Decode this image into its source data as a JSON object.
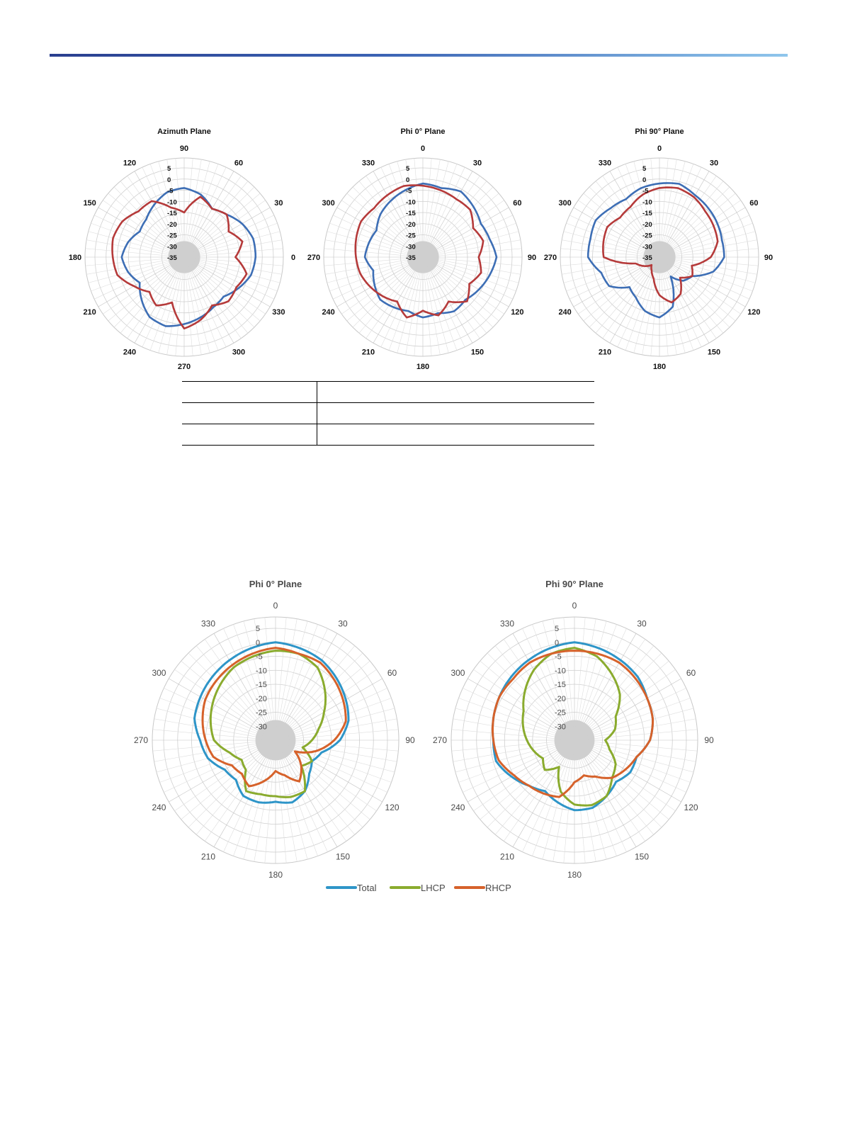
{
  "table": {
    "rows": [
      {
        "c1": "",
        "c2": ""
      },
      {
        "c1": "",
        "c2": ""
      },
      {
        "c1": "",
        "c2": ""
      }
    ]
  },
  "chart_data": [
    {
      "type": "polar-line",
      "title": "Azimuth Plane",
      "angle_zero": "right",
      "angle_direction": "counterclockwise",
      "angle_ticks": [
        0,
        30,
        60,
        90,
        120,
        150,
        180,
        210,
        240,
        270,
        300,
        330
      ],
      "radial_ticks": [
        5,
        0,
        -5,
        -10,
        -15,
        -20,
        -25,
        -30,
        -35
      ],
      "rlim": [
        -35,
        5
      ],
      "grid": true,
      "series": [
        {
          "color": "#3d6eb5",
          "angles": [
            0,
            15,
            30,
            45,
            60,
            75,
            90,
            105,
            120,
            135,
            150,
            165,
            180,
            195,
            210,
            225,
            240,
            255,
            270,
            285,
            300,
            315,
            330,
            345
          ],
          "values": [
            -3,
            -3,
            -5,
            -8,
            -10,
            -6,
            -4,
            -5,
            -8,
            -11,
            -12,
            -9,
            -7,
            -9,
            -12,
            -8,
            -4,
            -3,
            -5,
            -7,
            -9,
            -10,
            -7,
            -4
          ]
        },
        {
          "color": "#b53a3a",
          "angles": [
            0,
            15,
            30,
            45,
            60,
            75,
            90,
            105,
            120,
            135,
            150,
            165,
            180,
            195,
            210,
            225,
            240,
            255,
            270,
            285,
            300,
            315,
            330,
            345
          ],
          "values": [
            -12,
            -8,
            -12,
            -8,
            -10,
            -7,
            -15,
            -12,
            -6,
            -6,
            -3,
            -2,
            -3,
            -4,
            -9,
            -13,
            -10,
            -14,
            -3,
            -6,
            -10,
            -7,
            -8,
            -6
          ]
        }
      ]
    },
    {
      "type": "polar-line",
      "title": "Phi 0° Plane",
      "angle_zero": "top",
      "angle_direction": "clockwise",
      "angle_ticks": [
        0,
        30,
        60,
        90,
        120,
        150,
        180,
        210,
        240,
        270,
        300,
        330
      ],
      "radial_ticks": [
        5,
        0,
        -5,
        -10,
        -15,
        -20,
        -25,
        -30,
        -35
      ],
      "rlim": [
        -35,
        5
      ],
      "grid": true,
      "series": [
        {
          "color": "#3d6eb5",
          "angles": [
            0,
            15,
            30,
            45,
            60,
            75,
            90,
            105,
            120,
            135,
            150,
            165,
            180,
            195,
            210,
            225,
            240,
            255,
            270,
            285,
            300,
            315,
            330,
            345
          ],
          "values": [
            -2,
            -3,
            -1,
            -3,
            -5,
            -4,
            -2,
            -4,
            -6,
            -8,
            -7,
            -9,
            -8,
            -10,
            -9,
            -8,
            -10,
            -12,
            -9,
            -10,
            -11,
            -8,
            -6,
            -4
          ]
        },
        {
          "color": "#b53a3a",
          "angles": [
            0,
            15,
            30,
            45,
            60,
            75,
            90,
            105,
            120,
            135,
            150,
            165,
            180,
            195,
            210,
            225,
            240,
            255,
            270,
            285,
            300,
            315,
            330,
            345
          ],
          "values": [
            -3,
            -4,
            -5,
            -5,
            -9,
            -7,
            -10,
            -8,
            -11,
            -7,
            -12,
            -8,
            -11,
            -7,
            -12,
            -10,
            -8,
            -6,
            -5,
            -4,
            -3,
            -4,
            -3,
            -2
          ]
        }
      ]
    },
    {
      "type": "polar-line",
      "title": "Phi 90° Plane",
      "angle_zero": "top",
      "angle_direction": "clockwise",
      "angle_ticks": [
        0,
        30,
        60,
        90,
        120,
        150,
        180,
        210,
        240,
        270,
        300,
        330
      ],
      "radial_ticks": [
        5,
        0,
        -5,
        -10,
        -15,
        -20,
        -25,
        -30,
        -35
      ],
      "rlim": [
        -35,
        5
      ],
      "grid": true,
      "series": [
        {
          "color": "#3d6eb5",
          "angles": [
            0,
            15,
            30,
            45,
            60,
            75,
            90,
            105,
            120,
            135,
            150,
            165,
            180,
            195,
            210,
            225,
            240,
            255,
            270,
            285,
            300,
            315,
            330,
            345
          ],
          "values": [
            -2,
            -1,
            -3,
            -4,
            -5,
            -6,
            -6,
            -10,
            -18,
            -20,
            -25,
            -12,
            -8,
            -10,
            -14,
            -16,
            -9,
            -8,
            -3,
            -3,
            -2,
            -4,
            -5,
            -3
          ]
        },
        {
          "color": "#b53a3a",
          "angles": [
            0,
            15,
            30,
            45,
            60,
            75,
            90,
            105,
            120,
            135,
            150,
            165,
            180,
            195,
            210,
            225,
            240,
            255,
            270,
            285,
            300,
            315,
            330,
            345
          ],
          "values": [
            -4,
            -3,
            -4,
            -6,
            -7,
            -8,
            -12,
            -20,
            -18,
            -22,
            -16,
            -14,
            -18,
            -25,
            -28,
            -30,
            -27,
            -24,
            -10,
            -9,
            -8,
            -10,
            -9,
            -6
          ]
        }
      ]
    },
    {
      "type": "polar-line",
      "title": "Phi 0° Plane",
      "angle_zero": "top",
      "angle_direction": "clockwise",
      "angle_ticks": [
        0,
        30,
        60,
        90,
        120,
        150,
        180,
        210,
        240,
        270,
        300,
        330
      ],
      "radial_ticks": [
        5,
        0,
        -5,
        -10,
        -15,
        -20,
        -25,
        -30
      ],
      "rlim": [
        -35,
        5
      ],
      "grid": true,
      "legend": "bottom",
      "series": [
        {
          "name": "Total",
          "color": "#2e95c8",
          "angles": [
            0,
            15,
            30,
            45,
            60,
            75,
            90,
            105,
            120,
            135,
            150,
            165,
            180,
            195,
            210,
            225,
            240,
            255,
            270,
            285,
            300,
            315,
            330,
            345
          ],
          "values": [
            0,
            -1,
            -2,
            -4,
            -6,
            -8,
            -12,
            -18,
            -20,
            -18,
            -14,
            -12,
            -13,
            -12,
            -12,
            -15,
            -14,
            -10,
            -8,
            -5,
            -4,
            -3,
            -2,
            -1
          ]
        },
        {
          "name": "LHCP",
          "color": "#8aab2e",
          "angles": [
            0,
            15,
            30,
            45,
            60,
            75,
            90,
            105,
            120,
            135,
            150,
            165,
            180,
            195,
            210,
            225,
            240,
            255,
            270,
            285,
            300,
            315,
            330,
            345
          ],
          "values": [
            -3,
            -3,
            -5,
            -10,
            -15,
            -19,
            -22,
            -25,
            -20,
            -22,
            -14,
            -14,
            -15,
            -15,
            -14,
            -20,
            -21,
            -18,
            -13,
            -11,
            -9,
            -7,
            -5,
            -4
          ]
        },
        {
          "name": "RHCP",
          "color": "#d6622b",
          "angles": [
            0,
            15,
            30,
            45,
            60,
            75,
            90,
            105,
            120,
            135,
            150,
            165,
            180,
            195,
            210,
            225,
            240,
            255,
            270,
            285,
            300,
            315,
            330,
            345
          ],
          "values": [
            -2,
            -3,
            -3,
            -5,
            -7,
            -9,
            -14,
            -20,
            -27,
            -22,
            -18,
            -22,
            -24,
            -20,
            -16,
            -18,
            -17,
            -12,
            -10,
            -8,
            -6,
            -5,
            -4,
            -3
          ]
        }
      ]
    },
    {
      "type": "polar-line",
      "title": "Phi 90° Plane",
      "angle_zero": "top",
      "angle_direction": "clockwise",
      "angle_ticks": [
        0,
        30,
        60,
        90,
        120,
        150,
        180,
        210,
        240,
        270,
        300,
        330
      ],
      "radial_ticks": [
        5,
        0,
        -5,
        -10,
        -15,
        -20,
        -25,
        -30
      ],
      "rlim": [
        -35,
        5
      ],
      "grid": true,
      "legend": "bottom",
      "series": [
        {
          "name": "Total",
          "color": "#2e95c8",
          "angles": [
            0,
            15,
            30,
            45,
            60,
            75,
            90,
            105,
            120,
            135,
            150,
            165,
            180,
            195,
            210,
            225,
            240,
            255,
            270,
            285,
            300,
            315,
            330,
            345
          ],
          "values": [
            0,
            -1,
            -2,
            -3,
            -5,
            -6,
            -8,
            -12,
            -12,
            -14,
            -12,
            -10,
            -10,
            -12,
            -14,
            -12,
            -9,
            -6,
            -6,
            -5,
            -4,
            -3,
            -2,
            -1
          ]
        },
        {
          "name": "LHCP",
          "color": "#8aab2e",
          "angles": [
            0,
            15,
            30,
            45,
            60,
            75,
            90,
            105,
            120,
            135,
            150,
            165,
            180,
            195,
            210,
            225,
            240,
            255,
            270,
            285,
            300,
            315,
            330,
            345
          ],
          "values": [
            -2,
            -4,
            -8,
            -12,
            -18,
            -20,
            -24,
            -22,
            -18,
            -16,
            -12,
            -11,
            -12,
            -16,
            -24,
            -20,
            -22,
            -20,
            -18,
            -16,
            -14,
            -10,
            -6,
            -3
          ]
        },
        {
          "name": "RHCP",
          "color": "#d6622b",
          "angles": [
            0,
            15,
            30,
            45,
            60,
            75,
            90,
            105,
            120,
            135,
            150,
            165,
            180,
            195,
            210,
            225,
            240,
            255,
            270,
            285,
            300,
            315,
            330,
            345
          ],
          "values": [
            -3,
            -3,
            -3,
            -4,
            -5,
            -6,
            -8,
            -12,
            -14,
            -16,
            -20,
            -22,
            -20,
            -14,
            -13,
            -12,
            -10,
            -7,
            -6,
            -5,
            -4,
            -4,
            -3,
            -3
          ]
        }
      ]
    }
  ]
}
